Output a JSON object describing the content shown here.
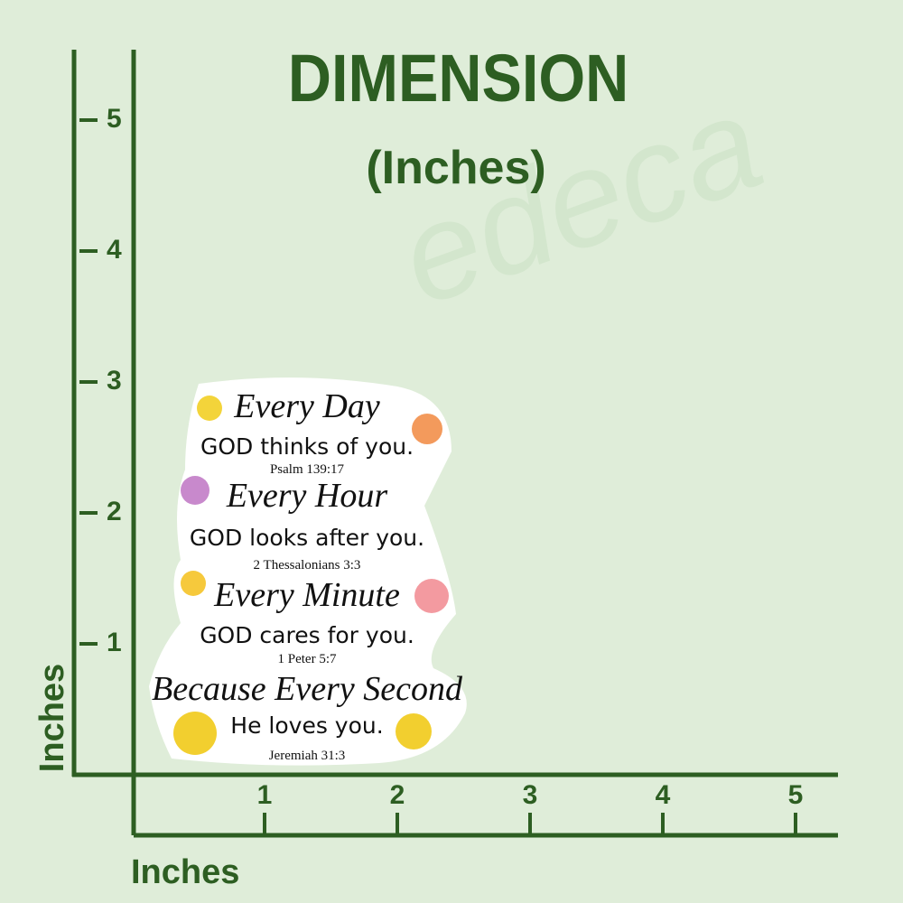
{
  "header": {
    "title": "DIMENSION",
    "subtitle": "(Inches)"
  },
  "watermark": "edeca",
  "vertical_axis": {
    "label": "Inches",
    "ticks": [
      "1",
      "2",
      "3",
      "4",
      "5"
    ]
  },
  "horizontal_axis": {
    "label": "Inches",
    "ticks": [
      "1",
      "2",
      "3",
      "4",
      "5"
    ]
  },
  "sticker": {
    "lines": [
      {
        "text": "Every Day",
        "style": "script"
      },
      {
        "text": "GOD thinks of you.",
        "style": "hand"
      },
      {
        "text": "Psalm 139:17",
        "style": "ref"
      },
      {
        "text": "Every Hour",
        "style": "script"
      },
      {
        "text": "GOD looks after you.",
        "style": "hand"
      },
      {
        "text": "2 Thessalonians 3:3",
        "style": "ref"
      },
      {
        "text": "Every Minute",
        "style": "script"
      },
      {
        "text": "GOD cares for you.",
        "style": "hand"
      },
      {
        "text": "1 Peter 5:7",
        "style": "ref"
      },
      {
        "text": "Because Every Second",
        "style": "script"
      },
      {
        "text": "He loves you.",
        "style": "hand"
      },
      {
        "text": "Jeremiah 31:3",
        "style": "ref"
      }
    ]
  }
}
